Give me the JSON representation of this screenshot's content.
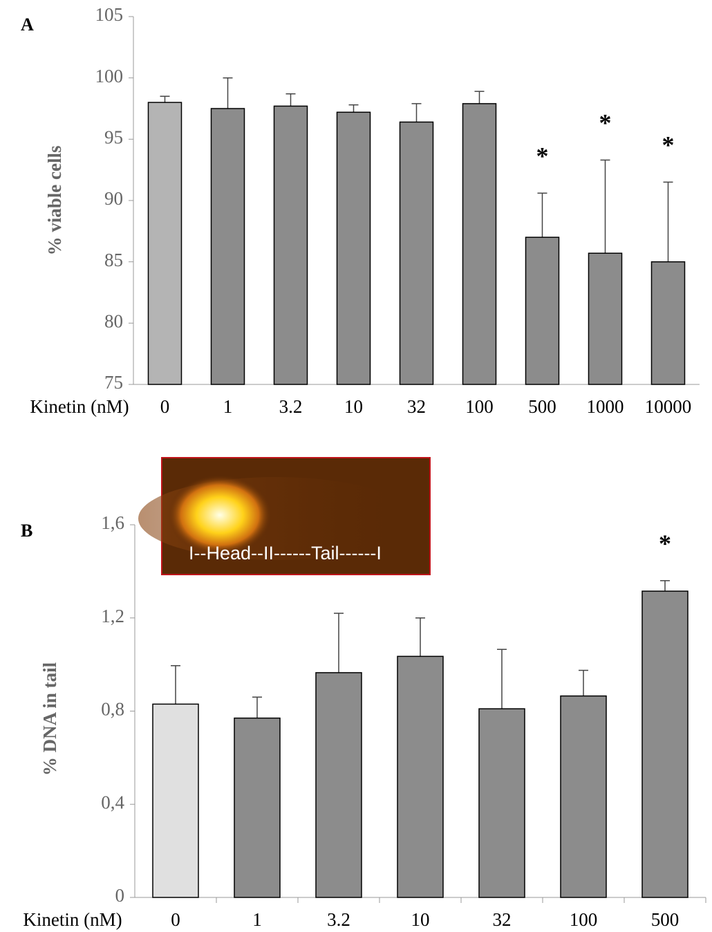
{
  "chart_data": [
    {
      "type": "bar",
      "panel_label": "A",
      "xlabel": "Kinetin (nM)",
      "ylabel": "% viable cells",
      "categories": [
        "0",
        "1",
        "3.2",
        "10",
        "32",
        "100",
        "500",
        "1000",
        "10000"
      ],
      "values": [
        98.0,
        97.5,
        97.7,
        97.2,
        96.4,
        97.9,
        87.0,
        85.7,
        85.0
      ],
      "errors": [
        0.5,
        2.5,
        1.0,
        0.6,
        1.5,
        1.0,
        3.6,
        7.6,
        6.5
      ],
      "markers": [
        null,
        null,
        null,
        null,
        null,
        null,
        "*",
        "*",
        "*"
      ],
      "colors": [
        "#b4b4b4",
        "#8c8c8c",
        "#8c8c8c",
        "#8c8c8c",
        "#8c8c8c",
        "#8c8c8c",
        "#8c8c8c",
        "#8c8c8c",
        "#8c8c8c"
      ],
      "ylim": [
        75,
        105
      ],
      "yticks": [
        75,
        80,
        85,
        90,
        95,
        100,
        105
      ]
    },
    {
      "type": "bar",
      "panel_label": "B",
      "xlabel": "Kinetin (nM)",
      "ylabel": "% DNA  in tail",
      "inset_caption": "I--Head--II------Tail------I",
      "categories": [
        "0",
        "1",
        "3.2",
        "10",
        "32",
        "100",
        "500"
      ],
      "values": [
        0.83,
        0.77,
        0.965,
        1.035,
        0.81,
        0.865,
        1.315
      ],
      "errors": [
        0.165,
        0.09,
        0.255,
        0.165,
        0.255,
        0.11,
        0.045
      ],
      "markers": [
        null,
        null,
        null,
        null,
        null,
        null,
        "*"
      ],
      "colors": [
        "#e0e0e0",
        "#8c8c8c",
        "#8c8c8c",
        "#8c8c8c",
        "#8c8c8c",
        "#8c8c8c",
        "#8c8c8c"
      ],
      "ylim": [
        0,
        1.6
      ],
      "yticks": [
        0,
        {
          "value": 0.4,
          "label": "0,4"
        },
        {
          "value": 0.8,
          "label": "0,8"
        },
        {
          "value": 1.2,
          "label": "1,2"
        },
        {
          "value": 1.6,
          "label": "1,6"
        }
      ]
    }
  ]
}
